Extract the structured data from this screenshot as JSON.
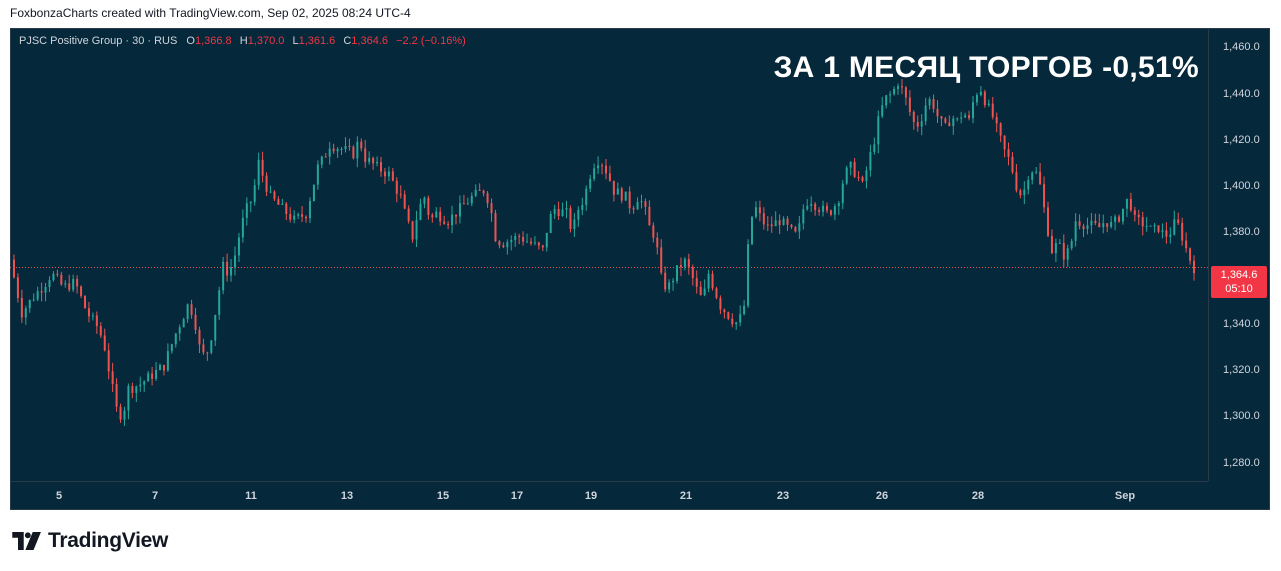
{
  "header": {
    "text": "FoxbonzaCharts created with TradingView.com, Sep 02, 2025 08:24 UTC-4"
  },
  "legend": {
    "symbol": "PJSC Positive Group · 30 · RUS",
    "o_label": "O",
    "o_value": "1,366.8",
    "h_label": "H",
    "h_value": "1,370.0",
    "l_label": "L",
    "l_value": "1,361.6",
    "c_label": "C",
    "c_value": "1,364.6",
    "change": "−2.2 (−0.16%)"
  },
  "annotation": "ЗА 1 МЕСЯЦ ТОРГОВ -0,51%",
  "price_badge": {
    "price": "1,364.6",
    "countdown": "05:10"
  },
  "brand": {
    "name": "TradingView"
  },
  "colors": {
    "background": "#05283a",
    "up": "#26a69a",
    "down": "#ef5350",
    "badge": "#f23645"
  },
  "chart_data": {
    "type": "candlestick",
    "title": "",
    "ylim": [
      1272,
      1468
    ],
    "last_price": 1364.6,
    "y_ticks": [
      {
        "value": 1460,
        "label": "1,460.0"
      },
      {
        "value": 1440,
        "label": "1,440.0"
      },
      {
        "value": 1420,
        "label": "1,420.0"
      },
      {
        "value": 1400,
        "label": "1,400.0"
      },
      {
        "value": 1380,
        "label": "1,380.0"
      },
      {
        "value": 1360,
        "label": "1,360.0"
      },
      {
        "value": 1340,
        "label": "1,340.0"
      },
      {
        "value": 1320,
        "label": "1,320.0"
      },
      {
        "value": 1300,
        "label": "1,300.0"
      },
      {
        "value": 1280,
        "label": "1,280.0"
      }
    ],
    "x_ticks": [
      "5",
      "7",
      "11",
      "13",
      "15",
      "17",
      "19",
      "21",
      "23",
      "26",
      "28",
      "Sep"
    ],
    "price_path": [
      [
        0,
        1368
      ],
      [
        0.01,
        1345
      ],
      [
        0.02,
        1352
      ],
      [
        0.03,
        1358
      ],
      [
        0.035,
        1362
      ],
      [
        0.045,
        1356
      ],
      [
        0.055,
        1358
      ],
      [
        0.065,
        1345
      ],
      [
        0.075,
        1338
      ],
      [
        0.08,
        1330
      ],
      [
        0.085,
        1316
      ],
      [
        0.09,
        1303
      ],
      [
        0.095,
        1300
      ],
      [
        0.1,
        1312
      ],
      [
        0.11,
        1314
      ],
      [
        0.12,
        1318
      ],
      [
        0.13,
        1322
      ],
      [
        0.14,
        1336
      ],
      [
        0.15,
        1348
      ],
      [
        0.155,
        1345
      ],
      [
        0.16,
        1330
      ],
      [
        0.165,
        1325
      ],
      [
        0.17,
        1335
      ],
      [
        0.175,
        1350
      ],
      [
        0.18,
        1365
      ],
      [
        0.185,
        1362
      ],
      [
        0.19,
        1370
      ],
      [
        0.195,
        1382
      ],
      [
        0.2,
        1390
      ],
      [
        0.205,
        1395
      ],
      [
        0.21,
        1410
      ],
      [
        0.215,
        1402
      ],
      [
        0.22,
        1395
      ],
      [
        0.23,
        1390
      ],
      [
        0.24,
        1385
      ],
      [
        0.25,
        1388
      ],
      [
        0.255,
        1398
      ],
      [
        0.26,
        1408
      ],
      [
        0.265,
        1412
      ],
      [
        0.27,
        1418
      ],
      [
        0.28,
        1416
      ],
      [
        0.29,
        1414
      ],
      [
        0.295,
        1420
      ],
      [
        0.3,
        1412
      ],
      [
        0.31,
        1408
      ],
      [
        0.32,
        1405
      ],
      [
        0.33,
        1395
      ],
      [
        0.335,
        1385
      ],
      [
        0.34,
        1378
      ],
      [
        0.345,
        1390
      ],
      [
        0.35,
        1395
      ],
      [
        0.355,
        1385
      ],
      [
        0.36,
        1388
      ],
      [
        0.37,
        1385
      ],
      [
        0.38,
        1390
      ],
      [
        0.39,
        1395
      ],
      [
        0.4,
        1398
      ],
      [
        0.405,
        1393
      ],
      [
        0.41,
        1378
      ],
      [
        0.415,
        1375
      ],
      [
        0.42,
        1376
      ],
      [
        0.43,
        1378
      ],
      [
        0.44,
        1375
      ],
      [
        0.45,
        1372
      ],
      [
        0.455,
        1385
      ],
      [
        0.46,
        1390
      ],
      [
        0.47,
        1388
      ],
      [
        0.475,
        1380
      ],
      [
        0.48,
        1390
      ],
      [
        0.485,
        1395
      ],
      [
        0.49,
        1405
      ],
      [
        0.495,
        1412
      ],
      [
        0.5,
        1410
      ],
      [
        0.505,
        1405
      ],
      [
        0.51,
        1398
      ],
      [
        0.52,
        1395
      ],
      [
        0.525,
        1390
      ],
      [
        0.53,
        1395
      ],
      [
        0.535,
        1392
      ],
      [
        0.54,
        1382
      ],
      [
        0.545,
        1378
      ],
      [
        0.55,
        1360
      ],
      [
        0.555,
        1355
      ],
      [
        0.56,
        1360
      ],
      [
        0.565,
        1365
      ],
      [
        0.57,
        1367
      ],
      [
        0.575,
        1362
      ],
      [
        0.58,
        1355
      ],
      [
        0.585,
        1350
      ],
      [
        0.59,
        1362
      ],
      [
        0.595,
        1355
      ],
      [
        0.6,
        1348
      ],
      [
        0.605,
        1345
      ],
      [
        0.61,
        1342
      ],
      [
        0.615,
        1340
      ],
      [
        0.62,
        1348
      ],
      [
        0.625,
        1385
      ],
      [
        0.63,
        1390
      ],
      [
        0.635,
        1385
      ],
      [
        0.64,
        1382
      ],
      [
        0.65,
        1385
      ],
      [
        0.66,
        1380
      ],
      [
        0.665,
        1378
      ],
      [
        0.67,
        1390
      ],
      [
        0.675,
        1395
      ],
      [
        0.68,
        1392
      ],
      [
        0.69,
        1388
      ],
      [
        0.695,
        1390
      ],
      [
        0.7,
        1395
      ],
      [
        0.705,
        1405
      ],
      [
        0.71,
        1408
      ],
      [
        0.715,
        1405
      ],
      [
        0.72,
        1400
      ],
      [
        0.725,
        1410
      ],
      [
        0.73,
        1420
      ],
      [
        0.735,
        1432
      ],
      [
        0.74,
        1438
      ],
      [
        0.745,
        1440
      ],
      [
        0.75,
        1445
      ],
      [
        0.755,
        1440
      ],
      [
        0.76,
        1432
      ],
      [
        0.765,
        1425
      ],
      [
        0.77,
        1430
      ],
      [
        0.775,
        1438
      ],
      [
        0.78,
        1435
      ],
      [
        0.785,
        1428
      ],
      [
        0.79,
        1425
      ],
      [
        0.795,
        1430
      ],
      [
        0.8,
        1428
      ],
      [
        0.805,
        1432
      ],
      [
        0.81,
        1428
      ],
      [
        0.815,
        1440
      ],
      [
        0.82,
        1442
      ],
      [
        0.825,
        1435
      ],
      [
        0.83,
        1430
      ],
      [
        0.835,
        1422
      ],
      [
        0.84,
        1415
      ],
      [
        0.845,
        1410
      ],
      [
        0.85,
        1400
      ],
      [
        0.855,
        1395
      ],
      [
        0.86,
        1405
      ],
      [
        0.865,
        1408
      ],
      [
        0.87,
        1400
      ],
      [
        0.875,
        1385
      ],
      [
        0.88,
        1372
      ],
      [
        0.885,
        1375
      ],
      [
        0.89,
        1370
      ],
      [
        0.895,
        1372
      ],
      [
        0.9,
        1385
      ],
      [
        0.91,
        1383
      ],
      [
        0.92,
        1382
      ],
      [
        0.925,
        1385
      ],
      [
        0.93,
        1383
      ],
      [
        0.935,
        1385
      ],
      [
        0.94,
        1390
      ],
      [
        0.945,
        1395
      ],
      [
        0.95,
        1385
      ],
      [
        0.96,
        1383
      ],
      [
        0.965,
        1380
      ],
      [
        0.97,
        1382
      ],
      [
        0.975,
        1378
      ],
      [
        0.98,
        1380
      ],
      [
        0.985,
        1385
      ],
      [
        0.99,
        1378
      ],
      [
        0.995,
        1370
      ],
      [
        1.0,
        1364.6
      ]
    ]
  }
}
